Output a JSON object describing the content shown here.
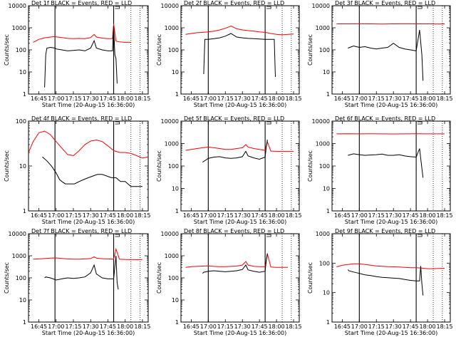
{
  "figure": {
    "xlabel": "Start Time (20-Aug-15 16:36:00)",
    "ylabel": "Counts/sec",
    "xticks": [
      "16:45",
      "17:00",
      "17:15",
      "17:30",
      "17:45",
      "18:00",
      "18:15"
    ],
    "colors": {
      "events": "#000000",
      "lld": "#ff0000",
      "background": "#ffffff"
    }
  },
  "chart_data": [
    {
      "type": "line",
      "title": "Det 1f BLACK = Events, RED = LLD",
      "ylim": [
        1,
        10000
      ],
      "yticks": [
        "1",
        "10",
        "100",
        "1000",
        "10000"
      ],
      "xlim": [
        "16:36",
        "18:20"
      ],
      "series": [
        {
          "x": [
            "16:40",
            "16:45",
            "16:50",
            "16:55",
            "16:59",
            "17:00",
            "17:05",
            "17:10",
            "17:15",
            "17:20",
            "17:25",
            "17:30",
            "17:33",
            "17:35",
            "17:40",
            "17:45",
            "17:49",
            "17:50",
            "17:52",
            "17:55",
            "18:00",
            "18:05"
          ],
          "y": [
            220,
            300,
            350,
            380,
            400,
            390,
            360,
            330,
            320,
            330,
            320,
            360,
            500,
            380,
            340,
            320,
            320,
            1500,
            250,
            230,
            220,
            220
          ]
        },
        {
          "x": [
            "16:50",
            "16:51",
            "16:52",
            "16:55",
            "16:59",
            "17:00",
            "17:05",
            "17:10",
            "17:15",
            "17:20",
            "17:25",
            "17:30",
            "17:33",
            "17:35",
            "17:40",
            "17:45",
            "17:49",
            "17:50",
            "17:51",
            "17:52",
            "17:53"
          ],
          "y": [
            2,
            60,
            120,
            130,
            120,
            110,
            100,
            90,
            95,
            100,
            90,
            120,
            260,
            120,
            100,
            90,
            90,
            1200,
            60,
            40,
            3
          ]
        }
      ]
    },
    {
      "type": "line",
      "title": "Det 2f BLACK = Events, RED = LLD",
      "ylim": [
        1,
        10000
      ],
      "yticks": [
        "1",
        "10",
        "100",
        "1000",
        "10000"
      ],
      "xlim": [
        "16:36",
        "18:20"
      ],
      "series": [
        {
          "x": [
            "16:40",
            "16:45",
            "16:50",
            "16:55",
            "17:00",
            "17:05",
            "17:10",
            "17:15",
            "17:20",
            "17:25",
            "17:30",
            "17:35",
            "17:40",
            "17:45",
            "17:50",
            "17:55",
            "18:00",
            "18:05",
            "18:10",
            "18:15"
          ],
          "y": [
            500,
            550,
            600,
            620,
            650,
            700,
            800,
            950,
            1200,
            900,
            800,
            750,
            700,
            650,
            620,
            550,
            500,
            480,
            500,
            520
          ]
        },
        {
          "x": [
            "16:56",
            "16:57",
            "17:00",
            "17:05",
            "17:10",
            "17:15",
            "17:20",
            "17:25",
            "17:30",
            "17:35",
            "17:40",
            "17:45",
            "17:50",
            "17:55",
            "17:58",
            "17:59"
          ],
          "y": [
            8,
            300,
            300,
            320,
            350,
            420,
            550,
            380,
            350,
            330,
            320,
            310,
            300,
            300,
            300,
            6
          ]
        }
      ]
    },
    {
      "type": "line",
      "title": "Det 3f BLACK = Events, RED = LLD",
      "ylim": [
        1,
        10000
      ],
      "yticks": [
        "1",
        "10",
        "100",
        "1000",
        "10000"
      ],
      "xlim": [
        "16:36",
        "18:20"
      ],
      "series": [
        {
          "x": [
            "16:40",
            "16:50",
            "17:00",
            "17:10",
            "17:20",
            "17:30",
            "17:40",
            "17:50",
            "18:00",
            "18:10",
            "18:15"
          ],
          "y": [
            1500,
            1500,
            1520,
            1500,
            1480,
            1500,
            1520,
            1500,
            1500,
            1480,
            1500
          ]
        },
        {
          "x": [
            "16:50",
            "16:55",
            "17:00",
            "17:05",
            "17:10",
            "17:15",
            "17:20",
            "17:25",
            "17:30",
            "17:35",
            "17:40",
            "17:45",
            "17:50",
            "17:53",
            "17:55",
            "17:56"
          ],
          "y": [
            120,
            150,
            130,
            140,
            120,
            110,
            120,
            130,
            200,
            130,
            110,
            100,
            90,
            800,
            60,
            4
          ]
        }
      ]
    },
    {
      "type": "line",
      "title": "Det 4f BLACK = Events, RED = LLD",
      "ylim": [
        1,
        100
      ],
      "yticks": [
        "1",
        "10",
        "100"
      ],
      "xlim": [
        "16:36",
        "18:20"
      ],
      "series": [
        {
          "x": [
            "16:36",
            "16:40",
            "16:45",
            "16:50",
            "16:55",
            "17:00",
            "17:05",
            "17:10",
            "17:15",
            "17:20",
            "17:25",
            "17:30",
            "17:35",
            "17:40",
            "17:45",
            "17:50",
            "17:55",
            "18:00",
            "18:05",
            "18:10",
            "18:15",
            "18:20"
          ],
          "y": [
            20,
            35,
            55,
            60,
            50,
            35,
            25,
            18,
            17,
            22,
            30,
            36,
            38,
            35,
            28,
            22,
            20,
            20,
            19,
            17,
            15,
            16
          ]
        },
        {
          "x": [
            "16:48",
            "16:52",
            "16:56",
            "17:00",
            "17:03",
            "17:05",
            "17:08",
            "17:12",
            "17:16",
            "17:20",
            "17:24",
            "17:28",
            "17:32",
            "17:36",
            "17:40",
            "17:44",
            "17:48",
            "17:52",
            "17:56",
            "18:00",
            "18:05",
            "18:10",
            "18:15"
          ],
          "y": [
            16,
            13,
            10,
            7,
            5,
            4.5,
            4,
            4,
            4,
            4.5,
            5,
            5.5,
            6,
            6.5,
            6.5,
            6,
            5.5,
            5.5,
            4.5,
            4.5,
            3.5,
            3.5,
            3.5
          ]
        }
      ]
    },
    {
      "type": "line",
      "title": "Det 5f BLACK = Events, RED = LLD",
      "ylim": [
        1,
        10000
      ],
      "yticks": [
        "1",
        "10",
        "100",
        "1000",
        "10000"
      ],
      "xlim": [
        "16:36",
        "18:20"
      ],
      "series": [
        {
          "x": [
            "16:40",
            "16:45",
            "16:50",
            "16:55",
            "17:00",
            "17:05",
            "17:10",
            "17:15",
            "17:20",
            "17:25",
            "17:30",
            "17:33",
            "17:35",
            "17:40",
            "17:45",
            "17:50",
            "17:52",
            "17:55",
            "18:00",
            "18:05",
            "18:10",
            "18:15"
          ],
          "y": [
            500,
            550,
            600,
            650,
            700,
            650,
            600,
            550,
            550,
            600,
            650,
            900,
            700,
            600,
            550,
            500,
            1200,
            460,
            450,
            450,
            450,
            450
          ]
        },
        {
          "x": [
            "16:55",
            "16:56",
            "17:00",
            "17:05",
            "17:10",
            "17:15",
            "17:20",
            "17:25",
            "17:30",
            "17:33",
            "17:35",
            "17:40",
            "17:45",
            "17:50",
            "17:51",
            "17:52"
          ],
          "y": [
            150,
            160,
            220,
            250,
            260,
            230,
            220,
            230,
            260,
            450,
            280,
            230,
            200,
            250,
            700,
            1500
          ]
        }
      ]
    },
    {
      "type": "line",
      "title": "Det 6f BLACK = Events, RED = LLD",
      "ylim": [
        1,
        10000
      ],
      "yticks": [
        "1",
        "10",
        "100",
        "1000",
        "10000"
      ],
      "xlim": [
        "16:36",
        "18:20"
      ],
      "series": [
        {
          "x": [
            "16:40",
            "16:50",
            "17:00",
            "17:10",
            "17:20",
            "17:30",
            "17:40",
            "17:50",
            "18:00",
            "18:10",
            "18:15"
          ],
          "y": [
            2700,
            2750,
            2700,
            2720,
            2700,
            2680,
            2700,
            2720,
            2700,
            2700,
            2700
          ]
        },
        {
          "x": [
            "16:50",
            "16:55",
            "17:00",
            "17:05",
            "17:10",
            "17:15",
            "17:20",
            "17:25",
            "17:30",
            "17:35",
            "17:40",
            "17:45",
            "17:50",
            "17:53",
            "17:55",
            "17:56"
          ],
          "y": [
            300,
            350,
            320,
            300,
            310,
            320,
            340,
            300,
            300,
            320,
            280,
            260,
            250,
            600,
            80,
            30
          ]
        }
      ]
    },
    {
      "type": "line",
      "title": "Det 7f BLACK = Events, RED = LLD",
      "ylim": [
        1,
        10000
      ],
      "yticks": [
        "1",
        "10",
        "100",
        "1000",
        "10000"
      ],
      "xlim": [
        "16:36",
        "18:20"
      ],
      "series": [
        {
          "x": [
            "16:40",
            "16:45",
            "16:50",
            "16:55",
            "17:00",
            "17:05",
            "17:10",
            "17:15",
            "17:20",
            "17:25",
            "17:30",
            "17:33",
            "17:35",
            "17:40",
            "17:45",
            "17:50",
            "17:52",
            "17:55",
            "18:00",
            "18:05",
            "18:10",
            "18:15"
          ],
          "y": [
            700,
            720,
            750,
            780,
            800,
            760,
            720,
            700,
            700,
            720,
            750,
            900,
            780,
            740,
            720,
            700,
            2000,
            700,
            680,
            680,
            670,
            680
          ]
        },
        {
          "x": [
            "16:50",
            "16:51",
            "16:55",
            "17:00",
            "17:05",
            "17:10",
            "17:15",
            "17:20",
            "17:25",
            "17:30",
            "17:33",
            "17:35",
            "17:40",
            "17:45",
            "17:50",
            "17:52",
            "17:53",
            "17:54"
          ],
          "y": [
            100,
            110,
            100,
            80,
            90,
            100,
            95,
            100,
            110,
            170,
            380,
            150,
            100,
            90,
            90,
            1000,
            60,
            30
          ]
        }
      ]
    },
    {
      "type": "line",
      "title": "Det 8f BLACK = Events, RED = LLD",
      "ylim": [
        1,
        10000
      ],
      "yticks": [
        "1",
        "10",
        "100",
        "1000",
        "10000"
      ],
      "xlim": [
        "16:36",
        "18:20"
      ],
      "series": [
        {
          "x": [
            "16:40",
            "16:45",
            "16:50",
            "16:55",
            "17:00",
            "17:05",
            "17:10",
            "17:15",
            "17:20",
            "17:25",
            "17:30",
            "17:33",
            "17:35",
            "17:40",
            "17:45",
            "17:50",
            "17:52",
            "17:55",
            "18:00",
            "18:05",
            "18:10"
          ],
          "y": [
            300,
            320,
            330,
            340,
            350,
            330,
            320,
            320,
            330,
            340,
            380,
            550,
            380,
            330,
            320,
            320,
            1200,
            310,
            300,
            300,
            300
          ]
        },
        {
          "x": [
            "16:55",
            "16:56",
            "17:00",
            "17:05",
            "17:10",
            "17:15",
            "17:20",
            "17:25",
            "17:30",
            "17:33",
            "17:35",
            "17:40",
            "17:45",
            "17:50",
            "17:51",
            "17:52"
          ],
          "y": [
            160,
            180,
            200,
            210,
            200,
            190,
            200,
            210,
            240,
            380,
            230,
            200,
            180,
            200,
            600,
            1300
          ]
        }
      ]
    },
    {
      "type": "line",
      "title": "Det 9f BLACK = Events, RED = LLD",
      "ylim": [
        1,
        1000
      ],
      "yticks": [
        "1",
        "10",
        "100",
        "1000"
      ],
      "xlim": [
        "16:36",
        "18:20"
      ],
      "series": [
        {
          "x": [
            "16:40",
            "16:45",
            "16:50",
            "16:55",
            "17:00",
            "17:05",
            "17:10",
            "17:15",
            "17:20",
            "17:25",
            "17:30",
            "17:35",
            "17:40",
            "17:45",
            "17:50",
            "17:55",
            "18:00",
            "18:05",
            "18:10",
            "18:15"
          ],
          "y": [
            75,
            85,
            90,
            95,
            95,
            90,
            85,
            80,
            78,
            76,
            75,
            74,
            72,
            70,
            70,
            68,
            65,
            65,
            66,
            67
          ]
        },
        {
          "x": [
            "16:50",
            "16:51",
            "16:55",
            "17:00",
            "17:05",
            "17:10",
            "17:15",
            "17:20",
            "17:25",
            "17:30",
            "17:35",
            "17:40",
            "17:45",
            "17:50",
            "17:53",
            "17:54",
            "17:55",
            "17:56"
          ],
          "y": [
            60,
            55,
            50,
            45,
            40,
            38,
            35,
            33,
            32,
            31,
            30,
            28,
            26,
            25,
            25,
            80,
            20,
            8
          ]
        }
      ]
    }
  ]
}
